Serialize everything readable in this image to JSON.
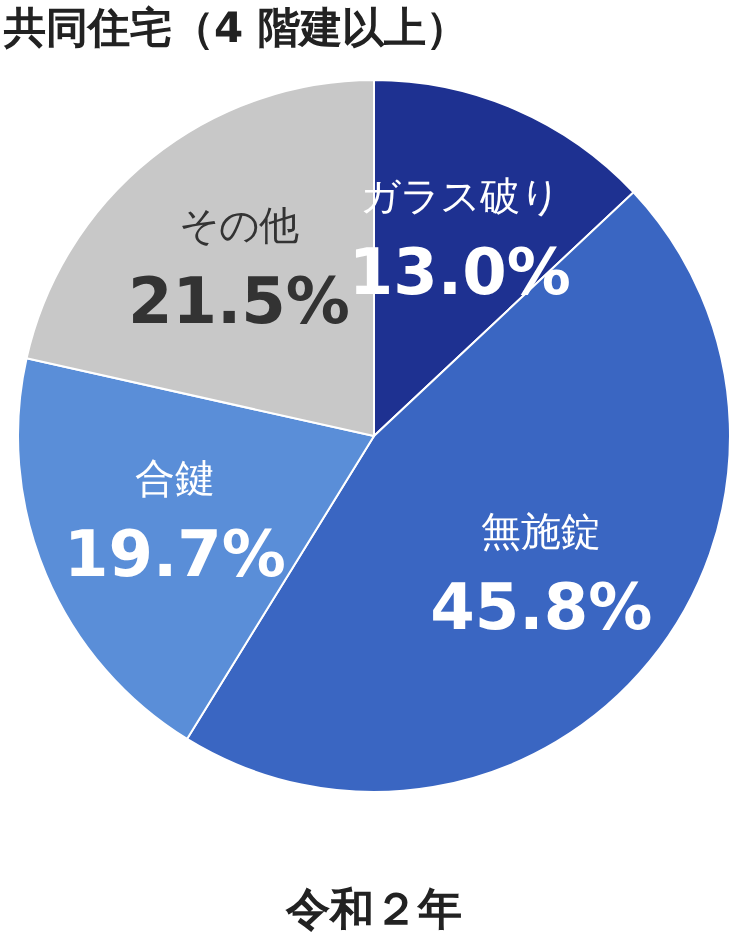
{
  "chart_data": {
    "type": "pie",
    "title": "共同住宅（4 階建以上）",
    "categories": [
      "ガラス破り",
      "無施錠",
      "合鍵",
      "その他"
    ],
    "values": [
      13.0,
      45.8,
      19.7,
      21.5
    ],
    "value_labels": [
      "13.0%",
      "45.8%",
      "19.7%",
      "21.5%"
    ],
    "colors": [
      "#1e3191",
      "#3a66c2",
      "#5a8ed8",
      "#c8c8c8"
    ],
    "annotations": [
      "令和２年"
    ]
  }
}
